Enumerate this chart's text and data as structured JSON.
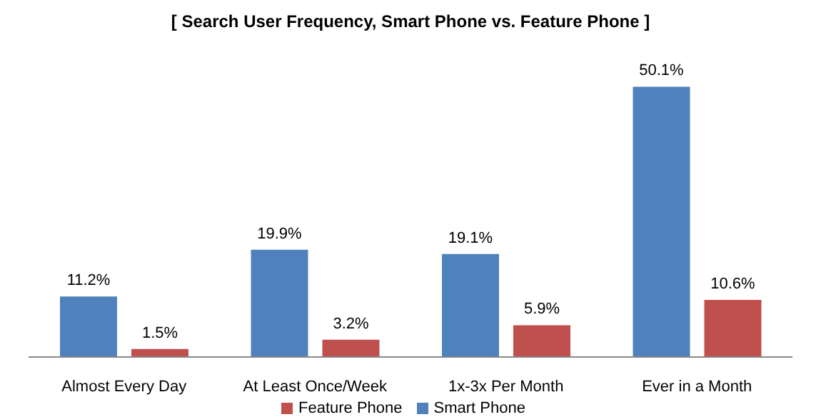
{
  "chart_data": {
    "type": "bar",
    "title": "[ Search User Frequency, Smart Phone vs. Feature Phone ]",
    "categories": [
      "Almost Every Day",
      "At Least Once/Week",
      "1x-3x Per Month",
      "Ever in a Month"
    ],
    "series": [
      {
        "name": "Smart Phone",
        "color": "#4f81bd",
        "values": [
          11.2,
          19.9,
          19.1,
          50.1
        ],
        "value_labels": [
          "11.2%",
          "19.9%",
          "19.1%",
          "50.1%"
        ]
      },
      {
        "name": "Feature Phone",
        "color": "#c0504d",
        "values": [
          1.5,
          3.2,
          5.9,
          10.6
        ],
        "value_labels": [
          "1.5%",
          "3.2%",
          "5.9%",
          "10.6%"
        ]
      }
    ],
    "legend": "bottom",
    "grid": false
  }
}
